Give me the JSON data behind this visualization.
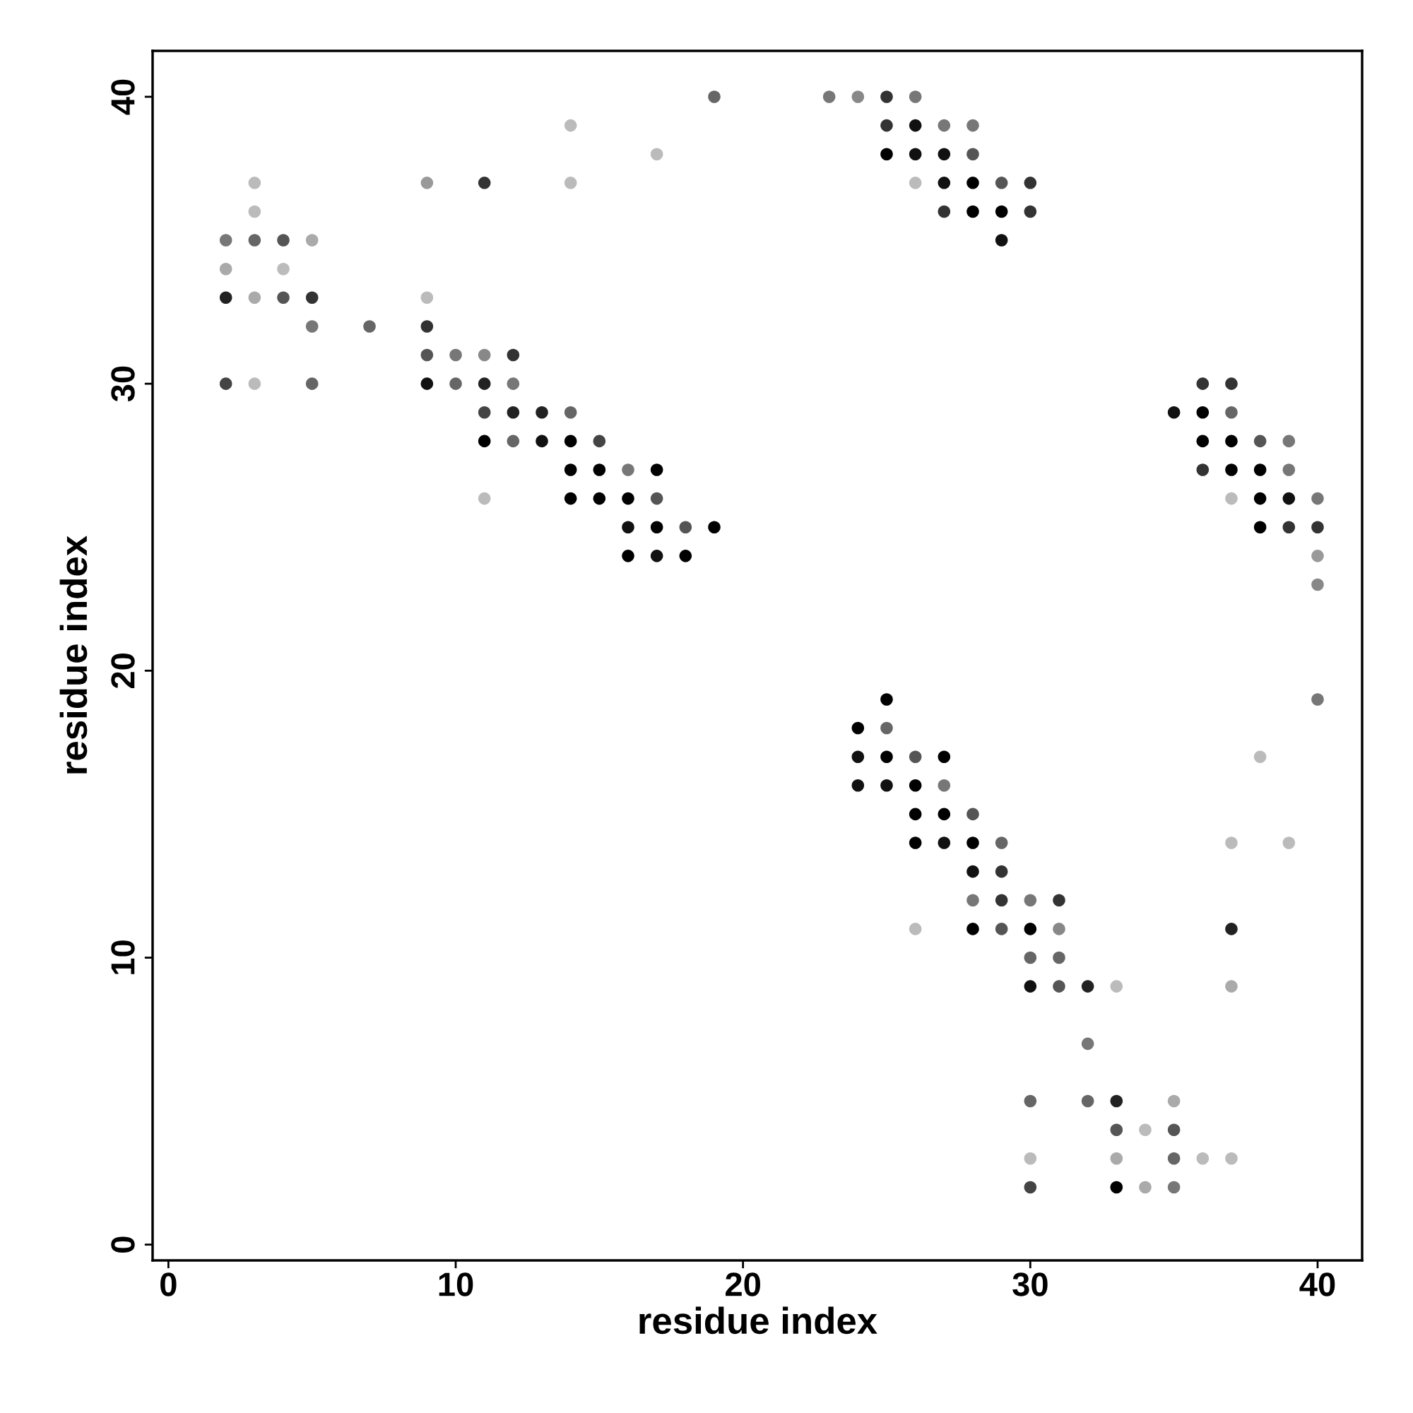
{
  "chart_data": {
    "type": "scatter",
    "xlabel": "residue index",
    "ylabel": "residue index",
    "xlim": [
      -0.55,
      41.55
    ],
    "ylim": [
      -0.55,
      41.6
    ],
    "xticks": [
      0,
      10,
      20,
      30,
      40
    ],
    "yticks": [
      0,
      10,
      20,
      30,
      40
    ],
    "grid": false,
    "marker": "circle",
    "series": [
      {
        "x": [
          2,
          2,
          2,
          2,
          3,
          3,
          3,
          3,
          3,
          4,
          4,
          4,
          5,
          5,
          5,
          5,
          7,
          9,
          9,
          9,
          9,
          9,
          10,
          10,
          11,
          11,
          11,
          11,
          11,
          11,
          12,
          12,
          12,
          12,
          13,
          13,
          14,
          14,
          14,
          14,
          14,
          14,
          15,
          15,
          15,
          16,
          16,
          16,
          16,
          17,
          17,
          17,
          17,
          17,
          18,
          18,
          19,
          19,
          23,
          24,
          24,
          24,
          24,
          25,
          25,
          25,
          25,
          25,
          25,
          25,
          26,
          26,
          26,
          26,
          26,
          26,
          26,
          26,
          26,
          27,
          27,
          27,
          27,
          27,
          27,
          27,
          27,
          28,
          28,
          28,
          28,
          28,
          28,
          28,
          28,
          28,
          29,
          29,
          29,
          29,
          29,
          29,
          29,
          30,
          30,
          30,
          30,
          30,
          30,
          30,
          30,
          30,
          31,
          31,
          31,
          31,
          32,
          32,
          32,
          33,
          33,
          33,
          33,
          33,
          34,
          34,
          35,
          35,
          35,
          35,
          35,
          36,
          36,
          36,
          36,
          36,
          37,
          37,
          37,
          37,
          37,
          37,
          37,
          37,
          37,
          38,
          38,
          38,
          38,
          38,
          39,
          39,
          39,
          39,
          39,
          40,
          40,
          40,
          40,
          40
        ],
        "values": [
          35,
          34,
          33,
          30,
          37,
          36,
          35,
          33,
          30,
          35,
          34,
          33,
          35,
          33,
          32,
          30,
          32,
          37,
          33,
          32,
          31,
          30,
          31,
          30,
          37,
          31,
          30,
          29,
          28,
          26,
          31,
          30,
          29,
          28,
          29,
          28,
          39,
          37,
          29,
          28,
          27,
          26,
          28,
          27,
          26,
          27,
          26,
          25,
          24,
          38,
          27,
          26,
          25,
          24,
          25,
          24,
          40,
          25,
          40,
          40,
          18,
          17,
          16,
          40,
          39,
          38,
          19,
          18,
          17,
          16,
          40,
          39,
          38,
          37,
          17,
          16,
          15,
          14,
          11,
          39,
          38,
          37,
          36,
          17,
          16,
          15,
          14,
          39,
          38,
          37,
          36,
          15,
          14,
          13,
          12,
          11,
          37,
          36,
          35,
          14,
          13,
          12,
          11,
          37,
          36,
          12,
          11,
          10,
          9,
          5,
          3,
          2,
          12,
          11,
          10,
          9,
          9,
          7,
          5,
          9,
          5,
          4,
          3,
          2,
          4,
          2,
          29,
          5,
          4,
          3,
          2,
          30,
          29,
          28,
          27,
          3,
          30,
          29,
          28,
          27,
          26,
          14,
          11,
          9,
          3,
          28,
          27,
          26,
          25,
          17,
          28,
          27,
          26,
          25,
          14,
          26,
          25,
          24,
          23,
          19
        ],
        "colors": [
          "#777777",
          "#aaaaaa",
          "#222222",
          "#444444",
          "#bbbbbb",
          "#bbbbbb",
          "#666666",
          "#aaaaaa",
          "#bbbbbb",
          "#555555",
          "#bbbbbb",
          "#555555",
          "#aaaaaa",
          "#333333",
          "#777777",
          "#666666",
          "#666666",
          "#999999",
          "#bbbbbb",
          "#333333",
          "#555555",
          "#111111",
          "#777777",
          "#666666",
          "#333333",
          "#888888",
          "#222222",
          "#444444",
          "#000000",
          "#bbbbbb",
          "#333333",
          "#777777",
          "#222222",
          "#666666",
          "#222222",
          "#111111",
          "#bbbbbb",
          "#bbbbbb",
          "#666666",
          "#000000",
          "#000000",
          "#000000",
          "#444444",
          "#000000",
          "#000000",
          "#777777",
          "#000000",
          "#111111",
          "#000000",
          "#bbbbbb",
          "#000000",
          "#555555",
          "#000000",
          "#111111",
          "#555555",
          "#000000",
          "#666666",
          "#000000",
          "#777777",
          "#888888",
          "#000000",
          "#111111",
          "#111111",
          "#333333",
          "#333333",
          "#000000",
          "#000000",
          "#666666",
          "#000000",
          "#111111",
          "#777777",
          "#111111",
          "#111111",
          "#bbbbbb",
          "#555555",
          "#000000",
          "#000000",
          "#000000",
          "#bbbbbb",
          "#777777",
          "#111111",
          "#111111",
          "#333333",
          "#000000",
          "#777777",
          "#000000",
          "#111111",
          "#777777",
          "#555555",
          "#000000",
          "#000000",
          "#555555",
          "#000000",
          "#111111",
          "#777777",
          "#000000",
          "#555555",
          "#000000",
          "#111111",
          "#666666",
          "#333333",
          "#333333",
          "#555555",
          "#333333",
          "#333333",
          "#777777",
          "#000000",
          "#666666",
          "#111111",
          "#666666",
          "#bbbbbb",
          "#444444",
          "#333333",
          "#888888",
          "#666666",
          "#555555",
          "#222222",
          "#777777",
          "#666666",
          "#bbbbbb",
          "#222222",
          "#555555",
          "#aaaaaa",
          "#000000",
          "#bbbbbb",
          "#aaaaaa",
          "#111111",
          "#aaaaaa",
          "#555555",
          "#666666",
          "#777777",
          "#333333",
          "#000000",
          "#000000",
          "#333333",
          "#bbbbbb",
          "#333333",
          "#666666",
          "#000000",
          "#000000",
          "#bbbbbb",
          "#bbbbbb",
          "#222222",
          "#aaaaaa",
          "#bbbbbb",
          "#555555",
          "#000000",
          "#000000",
          "#000000",
          "#bbbbbb",
          "#777777",
          "#777777",
          "#111111",
          "#333333",
          "#bbbbbb",
          "#777777",
          "#333333",
          "#999999",
          "#888888",
          "#777777"
        ]
      }
    ]
  }
}
